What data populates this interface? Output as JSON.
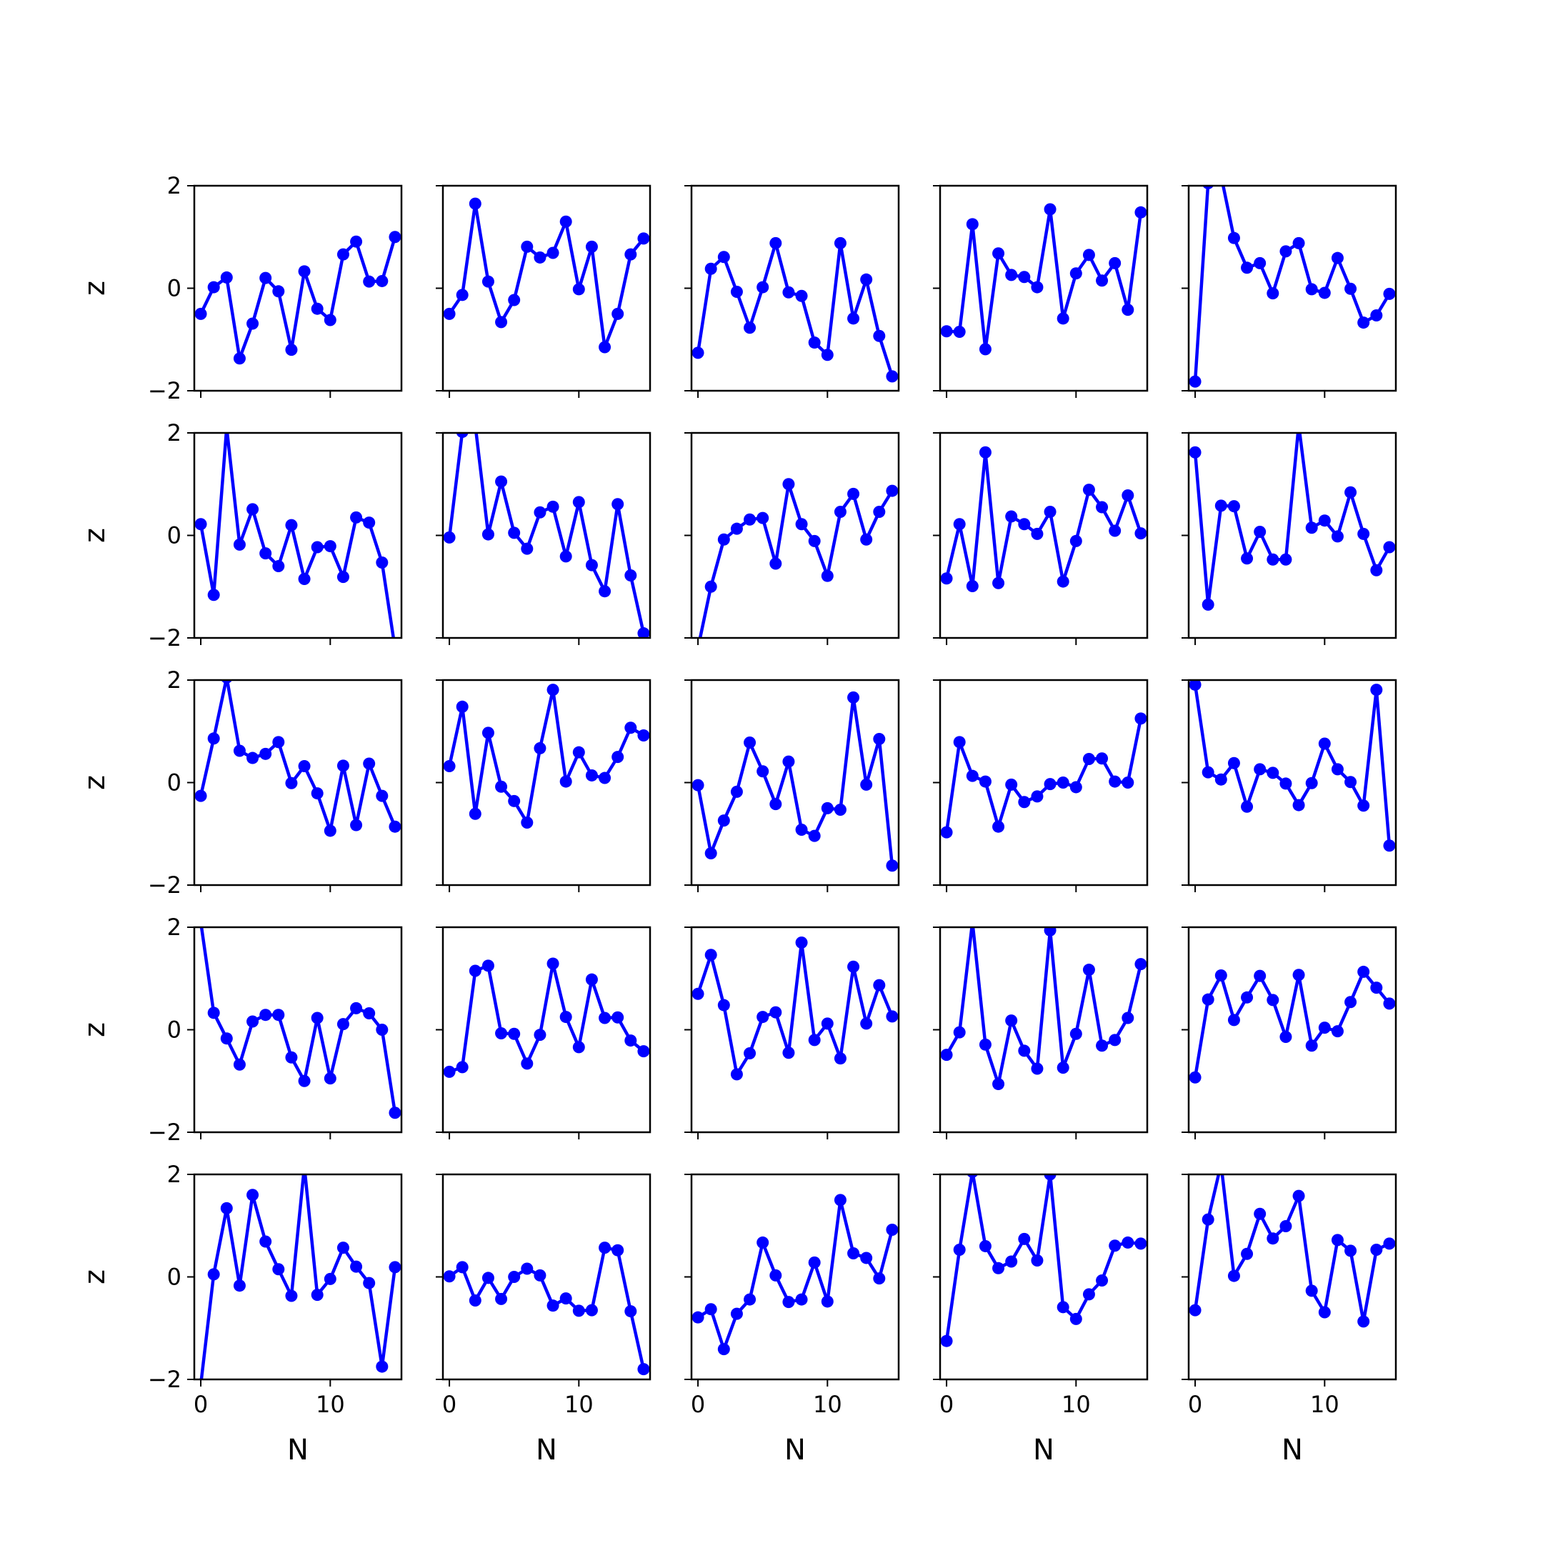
{
  "figure": {
    "rows": 5,
    "cols": 5,
    "line_color": "#0000ff",
    "marker": "circle",
    "xlabel": "N",
    "ylabel": "z",
    "xlim": [
      -0.5,
      15.5
    ],
    "ylim": [
      -2,
      2
    ],
    "x_ticks": [
      0,
      10
    ],
    "x_tick_labels": [
      "0",
      "10"
    ],
    "y_ticks": [
      -2,
      0,
      2
    ],
    "y_tick_labels": [
      "−2",
      "0",
      "2"
    ],
    "grid": false,
    "legend": "none"
  },
  "chart_data": [
    {
      "type": "line",
      "panel": "row 1, col 1",
      "x": [
        0,
        1,
        2,
        3,
        4,
        5,
        6,
        7,
        8,
        9,
        10,
        11,
        12,
        13,
        14,
        15
      ],
      "y": [
        -0.5,
        0.02,
        0.21,
        -1.37,
        -0.69,
        0.2,
        -0.06,
        -1.2,
        0.33,
        -0.4,
        -0.62,
        0.66,
        0.91,
        0.13,
        0.14,
        1.0
      ]
    },
    {
      "type": "line",
      "panel": "row 1, col 2",
      "x": [
        0,
        1,
        2,
        3,
        4,
        5,
        6,
        7,
        8,
        9,
        10,
        11,
        12,
        13,
        14,
        15
      ],
      "y": [
        -0.5,
        -0.13,
        1.65,
        0.13,
        -0.66,
        -0.23,
        0.81,
        0.6,
        0.69,
        1.3,
        -0.02,
        0.81,
        -1.15,
        -0.5,
        0.66,
        0.97
      ]
    },
    {
      "type": "line",
      "panel": "row 1, col 3",
      "x": [
        0,
        1,
        2,
        3,
        4,
        5,
        6,
        7,
        8,
        9,
        10,
        11,
        12,
        13,
        14,
        15
      ],
      "y": [
        -1.26,
        0.38,
        0.61,
        -0.07,
        -0.77,
        0.02,
        0.88,
        -0.08,
        -0.15,
        -1.06,
        -1.3,
        0.88,
        -0.59,
        0.17,
        -0.93,
        -1.72
      ]
    },
    {
      "type": "line",
      "panel": "row 1, col 4",
      "x": [
        0,
        1,
        2,
        3,
        4,
        5,
        6,
        7,
        8,
        9,
        10,
        11,
        12,
        13,
        14,
        15
      ],
      "y": [
        -0.84,
        -0.85,
        1.25,
        -1.19,
        0.68,
        0.26,
        0.22,
        0.02,
        1.54,
        -0.59,
        0.29,
        0.65,
        0.15,
        0.49,
        -0.42,
        1.48
      ]
    },
    {
      "type": "line",
      "panel": "row 1, col 5",
      "x": [
        0,
        1,
        2,
        3,
        4,
        5,
        6,
        7,
        8,
        9,
        10,
        11,
        12,
        13,
        14,
        15
      ],
      "y": [
        -1.82,
        2.05,
        2.2,
        0.98,
        0.4,
        0.49,
        -0.1,
        0.72,
        0.88,
        -0.02,
        -0.09,
        0.59,
        -0.01,
        -0.67,
        -0.53,
        -0.11
      ]
    },
    {
      "type": "line",
      "panel": "row 2, col 1",
      "x": [
        0,
        1,
        2,
        3,
        4,
        5,
        6,
        7,
        8,
        9,
        10,
        11,
        12,
        13,
        14,
        15
      ],
      "y": [
        0.22,
        -1.16,
        2.1,
        -0.18,
        0.51,
        -0.35,
        -0.6,
        0.2,
        -0.85,
        -0.23,
        -0.21,
        -0.81,
        0.35,
        0.25,
        -0.53,
        -2.2
      ]
    },
    {
      "type": "line",
      "panel": "row 2, col 2",
      "x": [
        0,
        1,
        2,
        3,
        4,
        5,
        6,
        7,
        8,
        9,
        10,
        11,
        12,
        13,
        14,
        15
      ],
      "y": [
        -0.04,
        2.02,
        2.15,
        0.02,
        1.05,
        0.05,
        -0.26,
        0.45,
        0.56,
        -0.41,
        0.65,
        -0.58,
        -1.09,
        0.61,
        -0.78,
        -1.91
      ]
    },
    {
      "type": "line",
      "panel": "row 2, col 3",
      "x": [
        0,
        1,
        2,
        3,
        4,
        5,
        6,
        7,
        8,
        9,
        10,
        11,
        12,
        13,
        14,
        15
      ],
      "y": [
        -2.2,
        -1.0,
        -0.08,
        0.13,
        0.31,
        0.34,
        -0.55,
        1.0,
        0.22,
        -0.11,
        -0.79,
        0.46,
        0.81,
        -0.08,
        0.46,
        0.87
      ]
    },
    {
      "type": "line",
      "panel": "row 2, col 4",
      "x": [
        0,
        1,
        2,
        3,
        4,
        5,
        6,
        7,
        8,
        9,
        10,
        11,
        12,
        13,
        14,
        15
      ],
      "y": [
        -0.84,
        0.22,
        -0.99,
        1.62,
        -0.93,
        0.37,
        0.22,
        0.03,
        0.46,
        -0.9,
        -0.11,
        0.89,
        0.55,
        0.09,
        0.78,
        0.04
      ]
    },
    {
      "type": "line",
      "panel": "row 2, col 5",
      "x": [
        0,
        1,
        2,
        3,
        4,
        5,
        6,
        7,
        8,
        9,
        10,
        11,
        12,
        13,
        14,
        15
      ],
      "y": [
        1.62,
        -1.35,
        0.58,
        0.57,
        -0.45,
        0.07,
        -0.47,
        -0.47,
        2.15,
        0.15,
        0.29,
        -0.02,
        0.84,
        0.03,
        -0.68,
        -0.23
      ]
    },
    {
      "type": "line",
      "panel": "row 3, col 1",
      "x": [
        0,
        1,
        2,
        3,
        4,
        5,
        6,
        7,
        8,
        9,
        10,
        11,
        12,
        13,
        14,
        15
      ],
      "y": [
        -0.26,
        0.86,
        2.05,
        0.62,
        0.48,
        0.56,
        0.79,
        -0.01,
        0.32,
        -0.21,
        -0.94,
        0.33,
        -0.83,
        0.37,
        -0.26,
        -0.86
      ]
    },
    {
      "type": "line",
      "panel": "row 3, col 2",
      "x": [
        0,
        1,
        2,
        3,
        4,
        5,
        6,
        7,
        8,
        9,
        10,
        11,
        12,
        13,
        14,
        15
      ],
      "y": [
        0.32,
        1.48,
        -0.61,
        0.97,
        -0.08,
        -0.36,
        -0.78,
        0.67,
        1.81,
        0.02,
        0.59,
        0.14,
        0.09,
        0.5,
        1.07,
        0.92
      ]
    },
    {
      "type": "line",
      "panel": "row 3, col 3",
      "x": [
        0,
        1,
        2,
        3,
        4,
        5,
        6,
        7,
        8,
        9,
        10,
        11,
        12,
        13,
        14,
        15
      ],
      "y": [
        -0.05,
        -1.38,
        -0.74,
        -0.18,
        0.78,
        0.22,
        -0.42,
        0.41,
        -0.92,
        -1.04,
        -0.5,
        -0.53,
        1.66,
        -0.04,
        0.85,
        -1.62
      ]
    },
    {
      "type": "line",
      "panel": "row 3, col 4",
      "x": [
        0,
        1,
        2,
        3,
        4,
        5,
        6,
        7,
        8,
        9,
        10,
        11,
        12,
        13,
        14,
        15
      ],
      "y": [
        -0.97,
        0.79,
        0.13,
        0.02,
        -0.86,
        -0.04,
        -0.38,
        -0.27,
        -0.03,
        0.0,
        -0.09,
        0.46,
        0.47,
        0.02,
        0.0,
        1.25
      ]
    },
    {
      "type": "line",
      "panel": "row 3, col 5",
      "x": [
        0,
        1,
        2,
        3,
        4,
        5,
        6,
        7,
        8,
        9,
        10,
        11,
        12,
        13,
        14,
        15
      ],
      "y": [
        1.91,
        0.2,
        0.06,
        0.38,
        -0.47,
        0.26,
        0.19,
        -0.02,
        -0.44,
        -0.01,
        0.76,
        0.26,
        0.01,
        -0.45,
        1.81,
        -1.23
      ]
    },
    {
      "type": "line",
      "panel": "row 4, col 1",
      "x": [
        0,
        1,
        2,
        3,
        4,
        5,
        6,
        7,
        8,
        9,
        10,
        11,
        12,
        13,
        14,
        15
      ],
      "y": [
        2.1,
        0.33,
        -0.17,
        -0.68,
        0.16,
        0.29,
        0.29,
        -0.54,
        -1.0,
        0.23,
        -0.95,
        0.11,
        0.42,
        0.32,
        0.0,
        -1.62
      ]
    },
    {
      "type": "line",
      "panel": "row 4, col 2",
      "x": [
        0,
        1,
        2,
        3,
        4,
        5,
        6,
        7,
        8,
        9,
        10,
        11,
        12,
        13,
        14,
        15
      ],
      "y": [
        -0.82,
        -0.73,
        1.15,
        1.25,
        -0.07,
        -0.08,
        -0.66,
        -0.1,
        1.29,
        0.25,
        -0.34,
        0.98,
        0.23,
        0.24,
        -0.21,
        -0.42
      ]
    },
    {
      "type": "line",
      "panel": "row 4, col 3",
      "x": [
        0,
        1,
        2,
        3,
        4,
        5,
        6,
        7,
        8,
        9,
        10,
        11,
        12,
        13,
        14,
        15
      ],
      "y": [
        0.7,
        1.46,
        0.48,
        -0.87,
        -0.46,
        0.25,
        0.34,
        -0.45,
        1.7,
        -0.2,
        0.12,
        -0.56,
        1.23,
        0.12,
        0.87,
        0.26
      ]
    },
    {
      "type": "line",
      "panel": "row 4, col 4",
      "x": [
        0,
        1,
        2,
        3,
        4,
        5,
        6,
        7,
        8,
        9,
        10,
        11,
        12,
        13,
        14,
        15
      ],
      "y": [
        -0.49,
        -0.05,
        2.1,
        -0.29,
        -1.06,
        0.18,
        -0.41,
        -0.76,
        1.94,
        -0.74,
        -0.08,
        1.17,
        -0.31,
        -0.2,
        0.23,
        1.28
      ]
    },
    {
      "type": "line",
      "panel": "row 4, col 5",
      "x": [
        0,
        1,
        2,
        3,
        4,
        5,
        6,
        7,
        8,
        9,
        10,
        11,
        12,
        13,
        14,
        15
      ],
      "y": [
        -0.93,
        0.59,
        1.06,
        0.19,
        0.63,
        1.05,
        0.58,
        -0.14,
        1.07,
        -0.31,
        0.04,
        -0.03,
        0.54,
        1.13,
        0.82,
        0.51
      ]
    },
    {
      "type": "line",
      "panel": "row 5, col 1",
      "x": [
        0,
        1,
        2,
        3,
        4,
        5,
        6,
        7,
        8,
        9,
        10,
        11,
        12,
        13,
        14,
        15
      ],
      "y": [
        -2.1,
        0.05,
        1.34,
        -0.17,
        1.6,
        0.69,
        0.15,
        -0.37,
        2.15,
        -0.35,
        -0.04,
        0.57,
        0.2,
        -0.12,
        -1.75,
        0.19
      ]
    },
    {
      "type": "line",
      "panel": "row 5, col 2",
      "x": [
        0,
        1,
        2,
        3,
        4,
        5,
        6,
        7,
        8,
        9,
        10,
        11,
        12,
        13,
        14,
        15
      ],
      "y": [
        0.01,
        0.19,
        -0.46,
        -0.02,
        -0.43,
        0.0,
        0.16,
        0.03,
        -0.56,
        -0.42,
        -0.66,
        -0.65,
        0.57,
        0.52,
        -0.67,
        -1.8
      ]
    },
    {
      "type": "line",
      "panel": "row 5, col 3",
      "x": [
        0,
        1,
        2,
        3,
        4,
        5,
        6,
        7,
        8,
        9,
        10,
        11,
        12,
        13,
        14,
        15
      ],
      "y": [
        -0.79,
        -0.63,
        -1.41,
        -0.72,
        -0.44,
        0.67,
        0.03,
        -0.49,
        -0.44,
        0.28,
        -0.48,
        1.5,
        0.46,
        0.37,
        -0.03,
        0.92
      ]
    },
    {
      "type": "line",
      "panel": "row 5, col 4",
      "x": [
        0,
        1,
        2,
        3,
        4,
        5,
        6,
        7,
        8,
        9,
        10,
        11,
        12,
        13,
        14,
        15
      ],
      "y": [
        -1.25,
        0.53,
        2.05,
        0.6,
        0.17,
        0.3,
        0.74,
        0.32,
        2.0,
        -0.59,
        -0.82,
        -0.34,
        -0.07,
        0.61,
        0.67,
        0.65
      ]
    },
    {
      "type": "line",
      "panel": "row 5, col 5",
      "x": [
        0,
        1,
        2,
        3,
        4,
        5,
        6,
        7,
        8,
        9,
        10,
        11,
        12,
        13,
        14,
        15
      ],
      "y": [
        -0.65,
        1.12,
        2.2,
        0.02,
        0.45,
        1.23,
        0.75,
        0.99,
        1.58,
        -0.27,
        -0.69,
        0.72,
        0.51,
        -0.87,
        0.53,
        0.65
      ]
    }
  ]
}
